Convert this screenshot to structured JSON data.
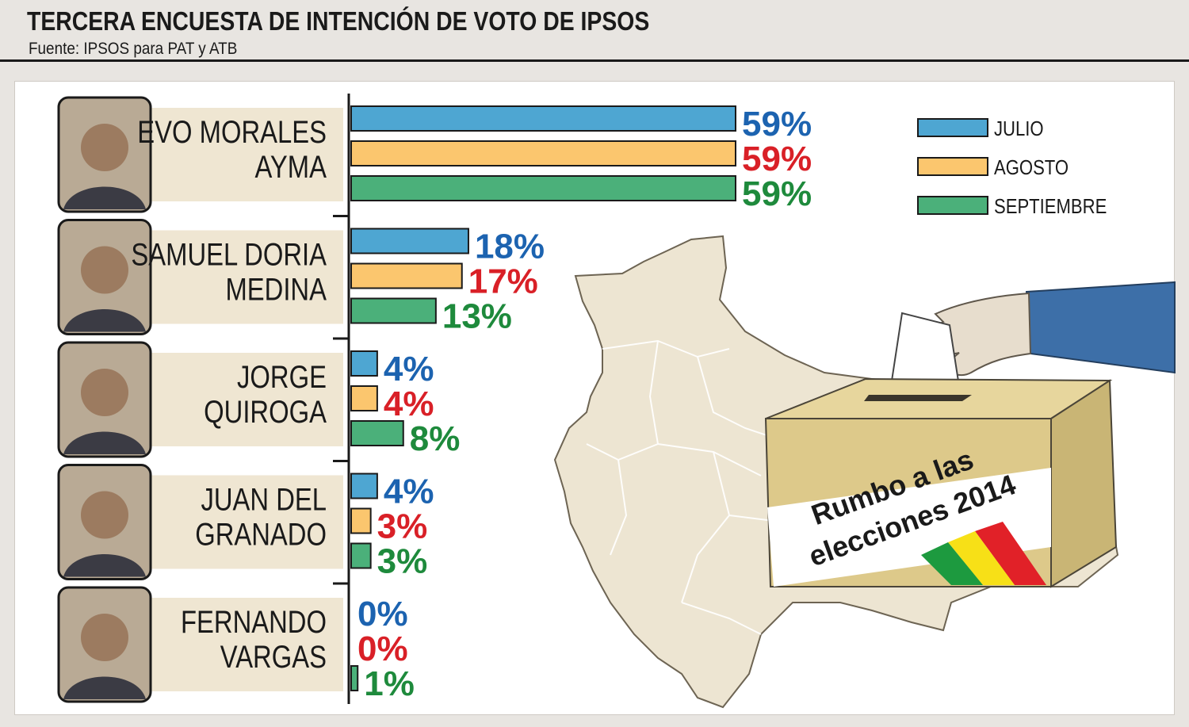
{
  "header": {
    "title": "TERCERA ENCUESTA DE INTENCIÓN DE VOTO DE IPSOS",
    "source": "Fuente: IPSOS para PAT y ATB"
  },
  "ballot_box": {
    "text_line1": "Rumbo a las",
    "text_line2": "elecciones 2014"
  },
  "colors": {
    "julio": "#4ea6d2",
    "agosto": "#fbc66e",
    "septiembre": "#4bb07a",
    "julio_text": "#1c63b0",
    "agosto_text": "#d92027",
    "septiembre_text": "#1e8a3c",
    "candidate_bg": "#efe6d2",
    "map": "#ede5d2"
  },
  "chart_data": {
    "type": "bar",
    "orientation": "horizontal",
    "title": "TERCERA ENCUESTA DE INTENCIÓN DE VOTO DE IPSOS",
    "categories": [
      [
        "EVO MORALES",
        "AYMA"
      ],
      [
        "SAMUEL DORIA",
        "MEDINA"
      ],
      [
        "JORGE",
        "QUIROGA"
      ],
      [
        "JUAN DEL",
        "GRANADO"
      ],
      [
        "FERNANDO",
        "VARGAS"
      ]
    ],
    "series": [
      {
        "name": "JULIO",
        "values": [
          59,
          18,
          4,
          4,
          0
        ]
      },
      {
        "name": "AGOSTO",
        "values": [
          59,
          17,
          4,
          3,
          0
        ]
      },
      {
        "name": "SEPTIEMBRE",
        "values": [
          59,
          13,
          8,
          3,
          1
        ]
      }
    ],
    "value_suffix": "%",
    "legend_position": "top-right",
    "xlim": [
      0,
      59
    ]
  }
}
